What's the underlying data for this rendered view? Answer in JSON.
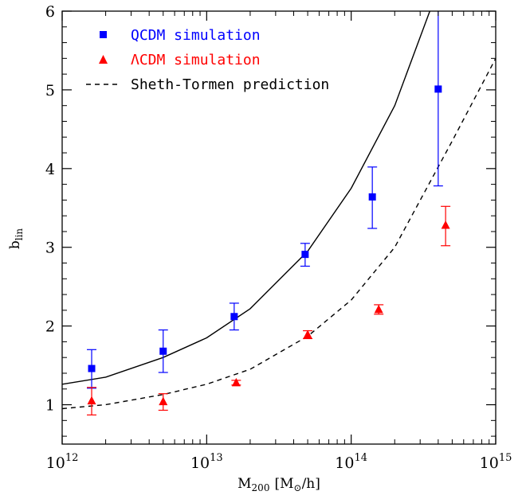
{
  "chart_data": {
    "type": "scatter",
    "title": "",
    "xlabel": {
      "main": "M",
      "sub": "200",
      "unit": "[M",
      "unit_sub": "⊙",
      "unit_tail": "/h]"
    },
    "ylabel": {
      "main": "b",
      "sub": "lin"
    },
    "x_scale": "log",
    "xlim": [
      1000000000000.0,
      1000000000000000.0
    ],
    "ylim": [
      0.5,
      6
    ],
    "x_ticks": [
      {
        "value": 1000000000000.0,
        "base": "10",
        "exp": "12"
      },
      {
        "value": 10000000000000.0,
        "base": "10",
        "exp": "13"
      },
      {
        "value": 100000000000000.0,
        "base": "10",
        "exp": "14"
      },
      {
        "value": 1000000000000000.0,
        "base": "10",
        "exp": "15"
      }
    ],
    "y_ticks": [
      1,
      2,
      3,
      4,
      5,
      6
    ],
    "grid": false,
    "legend_position": "top-left",
    "series": [
      {
        "name": "QCDM simulation",
        "marker": "square",
        "color": "#0000ff",
        "points": [
          {
            "x": 1600000000000.0,
            "y": 1.46,
            "err_low": 0.25,
            "err_high": 0.24
          },
          {
            "x": 5000000000000.0,
            "y": 1.68,
            "err_low": 0.27,
            "err_high": 0.27
          },
          {
            "x": 15500000000000.0,
            "y": 2.12,
            "err_low": 0.17,
            "err_high": 0.17
          },
          {
            "x": 48000000000000.0,
            "y": 2.91,
            "err_low": 0.15,
            "err_high": 0.14
          },
          {
            "x": 140000000000000.0,
            "y": 3.64,
            "err_low": 0.4,
            "err_high": 0.38
          },
          {
            "x": 400000000000000.0,
            "y": 5.01,
            "err_low": 1.23,
            "err_high": 1.3
          }
        ]
      },
      {
        "name": "ΛCDM simulation",
        "marker": "triangle",
        "color": "#ff0000",
        "points": [
          {
            "x": 1600000000000.0,
            "y": 1.05,
            "err_low": 0.18,
            "err_high": 0.17
          },
          {
            "x": 5000000000000.0,
            "y": 1.04,
            "err_low": 0.11,
            "err_high": 0.1
          },
          {
            "x": 16000000000000.0,
            "y": 1.28,
            "err_low": 0.03,
            "err_high": 0.03
          },
          {
            "x": 50000000000000.0,
            "y": 1.89,
            "err_low": 0.05,
            "err_high": 0.05
          },
          {
            "x": 155000000000000.0,
            "y": 2.21,
            "err_low": 0.06,
            "err_high": 0.06
          },
          {
            "x": 450000000000000.0,
            "y": 3.28,
            "err_low": 0.26,
            "err_high": 0.24
          }
        ]
      },
      {
        "name": "Sheth-Tormen prediction",
        "line_style": "dashed",
        "color": "#000000",
        "points": [
          {
            "x": 1000000000000.0,
            "y": 0.95
          },
          {
            "x": 2000000000000.0,
            "y": 1.0
          },
          {
            "x": 5000000000000.0,
            "y": 1.13
          },
          {
            "x": 10000000000000.0,
            "y": 1.26
          },
          {
            "x": 20000000000000.0,
            "y": 1.45
          },
          {
            "x": 50000000000000.0,
            "y": 1.87
          },
          {
            "x": 100000000000000.0,
            "y": 2.33
          },
          {
            "x": 200000000000000.0,
            "y": 3.0
          },
          {
            "x": 500000000000000.0,
            "y": 4.35
          },
          {
            "x": 1000000000000000.0,
            "y": 5.4
          }
        ]
      },
      {
        "line_style": "solid",
        "color": "#000000",
        "points": [
          {
            "x": 1000000000000.0,
            "y": 1.26
          },
          {
            "x": 2000000000000.0,
            "y": 1.35
          },
          {
            "x": 5000000000000.0,
            "y": 1.6
          },
          {
            "x": 10000000000000.0,
            "y": 1.85
          },
          {
            "x": 20000000000000.0,
            "y": 2.22
          },
          {
            "x": 50000000000000.0,
            "y": 2.95
          },
          {
            "x": 100000000000000.0,
            "y": 3.75
          },
          {
            "x": 200000000000000.0,
            "y": 4.8
          },
          {
            "x": 350000000000000.0,
            "y": 6.0
          }
        ]
      }
    ]
  }
}
